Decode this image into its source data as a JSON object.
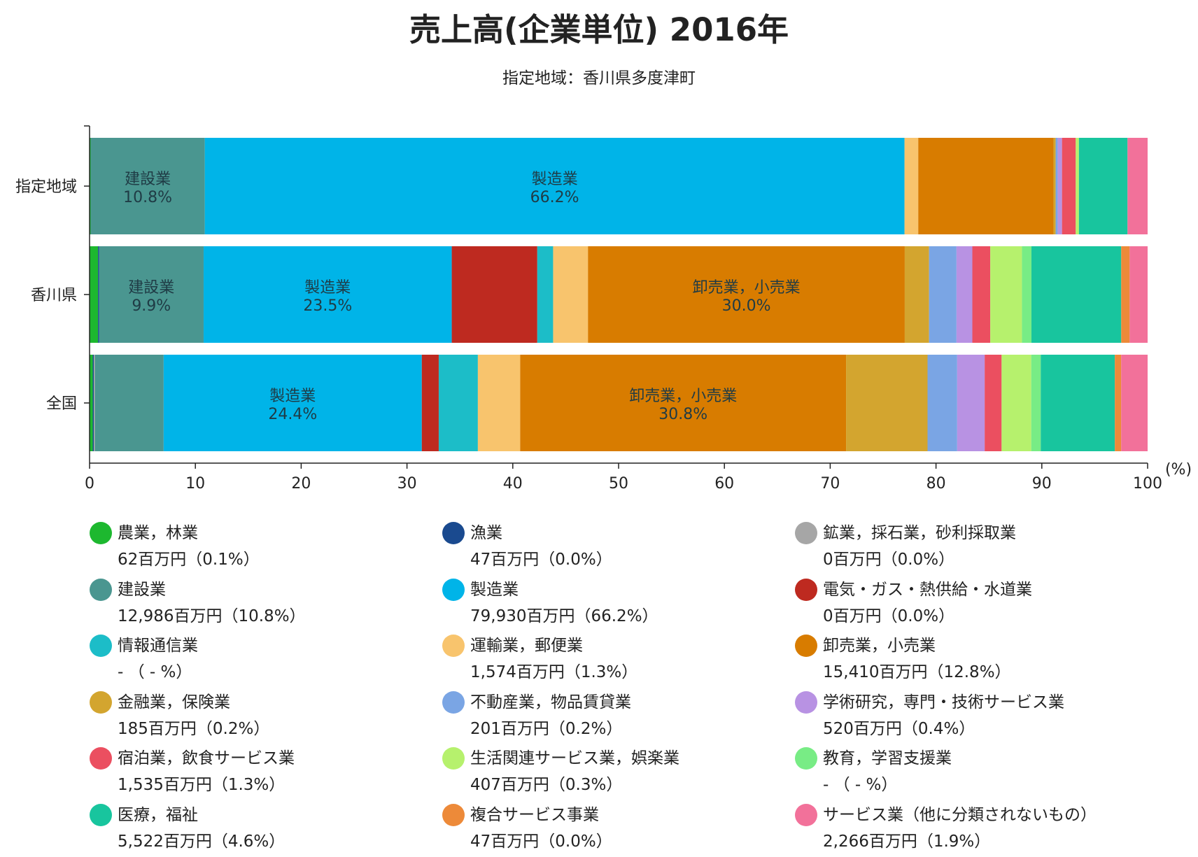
{
  "chart_data": {
    "type": "bar",
    "orientation": "horizontal-stacked-100",
    "title": "売上高(企業単位) 2016年",
    "subtitle": "指定地域：香川県多度津町",
    "x_unit": "(%)",
    "xlim": [
      0,
      100
    ],
    "x_ticks": [
      "0",
      "10",
      "20",
      "30",
      "40",
      "50",
      "60",
      "70",
      "80",
      "90",
      "100"
    ],
    "categories": [
      "指定地域",
      "香川県",
      "全国"
    ],
    "series": [
      {
        "name": "農業，林業",
        "color": "#1db82f",
        "values": [
          0.1,
          0.8,
          0.3
        ]
      },
      {
        "name": "漁業",
        "color": "#1a4a8f",
        "values": [
          0.0,
          0.1,
          0.1
        ]
      },
      {
        "name": "鉱業，採石業，砂利採取業",
        "color": "#a6a6a6",
        "values": [
          0.0,
          0.0,
          0.1
        ]
      },
      {
        "name": "建設業",
        "color": "#4a9690",
        "values": [
          10.8,
          9.9,
          6.5
        ]
      },
      {
        "name": "製造業",
        "color": "#00b4e8",
        "values": [
          66.2,
          23.5,
          24.4
        ]
      },
      {
        "name": "電気・ガス・熱供給・水道業",
        "color": "#be2a20",
        "values": [
          0.0,
          8.1,
          1.6
        ]
      },
      {
        "name": "情報通信業",
        "color": "#1cbdc8",
        "values": [
          0.0,
          1.5,
          3.7
        ]
      },
      {
        "name": "運輸業，郵便業",
        "color": "#f8c46d",
        "values": [
          1.3,
          3.3,
          4.0
        ]
      },
      {
        "name": "卸売業，小売業",
        "color": "#d87c00",
        "values": [
          12.8,
          30.0,
          30.8
        ]
      },
      {
        "name": "金融業，保険業",
        "color": "#d3a52f",
        "values": [
          0.2,
          2.3,
          7.7
        ]
      },
      {
        "name": "不動産業，物品賃貸業",
        "color": "#7aa5e4",
        "values": [
          0.2,
          2.6,
          2.8
        ]
      },
      {
        "name": "学術研究，専門・技術サービス業",
        "color": "#b892e3",
        "values": [
          0.4,
          1.5,
          2.6
        ]
      },
      {
        "name": "宿泊業，飲食サービス業",
        "color": "#eb4f60",
        "values": [
          1.3,
          1.7,
          1.6
        ]
      },
      {
        "name": "生活関連サービス業，娯楽業",
        "color": "#b6f16d",
        "values": [
          0.3,
          3.0,
          2.8
        ]
      },
      {
        "name": "教育，学習支援業",
        "color": "#78ec85",
        "values": [
          0.0,
          0.9,
          0.9
        ]
      },
      {
        "name": "医療，福祉",
        "color": "#18c59e",
        "values": [
          4.6,
          8.5,
          7.0
        ]
      },
      {
        "name": "複合サービス事業",
        "color": "#ed8a39",
        "values": [
          0.0,
          0.8,
          0.6
        ]
      },
      {
        "name": "サービス業（他に分類されないもの）",
        "color": "#f2719a",
        "values": [
          1.9,
          1.7,
          2.5
        ]
      }
    ],
    "segment_labels": [
      {
        "category": "指定地域",
        "series": "建設業",
        "name": "建設業",
        "value": "10.8%"
      },
      {
        "category": "指定地域",
        "series": "製造業",
        "name": "製造業",
        "value": "66.2%"
      },
      {
        "category": "香川県",
        "series": "建設業",
        "name": "建設業",
        "value": "9.9%"
      },
      {
        "category": "香川県",
        "series": "製造業",
        "name": "製造業",
        "value": "23.5%"
      },
      {
        "category": "香川県",
        "series": "卸売業，小売業",
        "name": "卸売業，小売業",
        "value": "30.0%"
      },
      {
        "category": "全国",
        "series": "製造業",
        "name": "製造業",
        "value": "24.4%"
      },
      {
        "category": "全国",
        "series": "卸売業，小売業",
        "name": "卸売業，小売業",
        "value": "30.8%"
      }
    ]
  },
  "legend": [
    {
      "name": "農業，林業",
      "value": "62百万円（0.1%）",
      "color": "#1db82f"
    },
    {
      "name": "漁業",
      "value": "47百万円（0.0%）",
      "color": "#1a4a8f"
    },
    {
      "name": "鉱業，採石業，砂利採取業",
      "value": "0百万円（0.0%）",
      "color": "#a6a6a6"
    },
    {
      "name": "建設業",
      "value": "12,986百万円（10.8%）",
      "color": "#4a9690"
    },
    {
      "name": "製造業",
      "value": "79,930百万円（66.2%）",
      "color": "#00b4e8"
    },
    {
      "name": "電気・ガス・熱供給・水道業",
      "value": "0百万円（0.0%）",
      "color": "#be2a20"
    },
    {
      "name": "情報通信業",
      "value": "-  （ - %）",
      "color": "#1cbdc8"
    },
    {
      "name": "運輸業，郵便業",
      "value": "1,574百万円（1.3%）",
      "color": "#f8c46d"
    },
    {
      "name": "卸売業，小売業",
      "value": "15,410百万円（12.8%）",
      "color": "#d87c00"
    },
    {
      "name": "金融業，保険業",
      "value": "185百万円（0.2%）",
      "color": "#d3a52f"
    },
    {
      "name": "不動産業，物品賃貸業",
      "value": "201百万円（0.2%）",
      "color": "#7aa5e4"
    },
    {
      "name": "学術研究，専門・技術サービス業",
      "value": "520百万円（0.4%）",
      "color": "#b892e3"
    },
    {
      "name": "宿泊業，飲食サービス業",
      "value": "1,535百万円（1.3%）",
      "color": "#eb4f60"
    },
    {
      "name": "生活関連サービス業，娯楽業",
      "value": "407百万円（0.3%）",
      "color": "#b6f16d"
    },
    {
      "name": "教育，学習支援業",
      "value": "-  （ - %）",
      "color": "#78ec85"
    },
    {
      "name": "医療，福祉",
      "value": "5,522百万円（4.6%）",
      "color": "#18c59e"
    },
    {
      "name": "複合サービス事業",
      "value": "47百万円（0.0%）",
      "color": "#ed8a39"
    },
    {
      "name": "サービス業（他に分類されないもの）",
      "value": "2,266百万円（1.9%）",
      "color": "#f2719a"
    }
  ]
}
